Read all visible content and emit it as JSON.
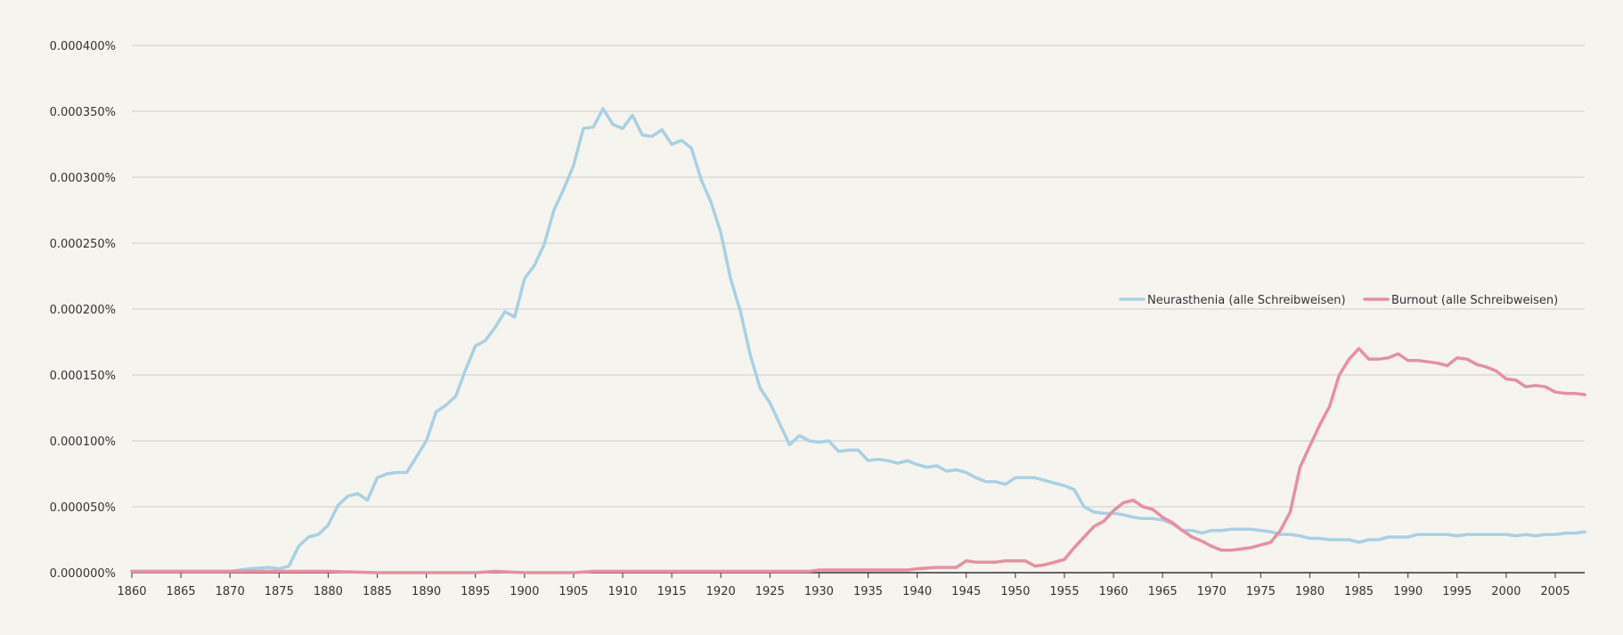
{
  "chart_data": {
    "type": "line",
    "title": "",
    "xlabel": "",
    "ylabel": "",
    "xlim": [
      1860,
      2008
    ],
    "ylim": [
      0,
      4e-06
    ],
    "grid": true,
    "legend_placement": "right",
    "x_ticks": [
      1860,
      1865,
      1870,
      1875,
      1880,
      1885,
      1890,
      1895,
      1900,
      1905,
      1910,
      1915,
      1920,
      1925,
      1930,
      1935,
      1940,
      1945,
      1950,
      1955,
      1960,
      1965,
      1970,
      1975,
      1980,
      1985,
      1990,
      1995,
      2000,
      2005
    ],
    "x_tick_labels": [
      "1860",
      "1865",
      "1870",
      "1875",
      "1880",
      "1885",
      "1890",
      "1895",
      "1900",
      "1905",
      "1910",
      "1915",
      "1920",
      "1925",
      "1930",
      "1935",
      "1940",
      "1945",
      "1950",
      "1955",
      "1960",
      "1965",
      "1970",
      "1975",
      "1980",
      "1985",
      "1990",
      "1995",
      "2000",
      "2005"
    ],
    "y_ticks": [
      0,
      5e-07,
      1e-06,
      1.5e-06,
      2e-06,
      2.5e-06,
      3e-06,
      3.5e-06,
      4e-06
    ],
    "y_tick_labels": [
      "0.000000%",
      "0.000050%",
      "0.000100%",
      "0.000150%",
      "0.000200%",
      "0.000250%",
      "0.000300%",
      "0.000350%",
      "0.000400%"
    ],
    "series": [
      {
        "name": "Neurasthenia (alle Schreibweisen)",
        "color": "#a8d1e3",
        "points": [
          [
            1860,
            1e-08
          ],
          [
            1865,
            1e-08
          ],
          [
            1870,
            1e-08
          ],
          [
            1872,
            3e-08
          ],
          [
            1874,
            4e-08
          ],
          [
            1875,
            3e-08
          ],
          [
            1876,
            5e-08
          ],
          [
            1877,
            2e-07
          ],
          [
            1878,
            2.7e-07
          ],
          [
            1879,
            2.9e-07
          ],
          [
            1880,
            3.6e-07
          ],
          [
            1881,
            5.1e-07
          ],
          [
            1882,
            5.8e-07
          ],
          [
            1883,
            6e-07
          ],
          [
            1884,
            5.5e-07
          ],
          [
            1885,
            7.2e-07
          ],
          [
            1886,
            7.5e-07
          ],
          [
            1887,
            7.6e-07
          ],
          [
            1888,
            7.6e-07
          ],
          [
            1889,
            8.8e-07
          ],
          [
            1890,
            1e-06
          ],
          [
            1891,
            1.22e-06
          ],
          [
            1892,
            1.27e-06
          ],
          [
            1893,
            1.34e-06
          ],
          [
            1894,
            1.54e-06
          ],
          [
            1895,
            1.72e-06
          ],
          [
            1896,
            1.76e-06
          ],
          [
            1897,
            1.86e-06
          ],
          [
            1898,
            1.98e-06
          ],
          [
            1899,
            1.94e-06
          ],
          [
            1900,
            2.23e-06
          ],
          [
            1901,
            2.33e-06
          ],
          [
            1902,
            2.49e-06
          ],
          [
            1903,
            2.75e-06
          ],
          [
            1904,
            2.91e-06
          ],
          [
            1905,
            3.09e-06
          ],
          [
            1906,
            3.37e-06
          ],
          [
            1907,
            3.38e-06
          ],
          [
            1908,
            3.52e-06
          ],
          [
            1909,
            3.4e-06
          ],
          [
            1910,
            3.37e-06
          ],
          [
            1911,
            3.47e-06
          ],
          [
            1912,
            3.32e-06
          ],
          [
            1913,
            3.31e-06
          ],
          [
            1914,
            3.36e-06
          ],
          [
            1915,
            3.25e-06
          ],
          [
            1916,
            3.28e-06
          ],
          [
            1917,
            3.22e-06
          ],
          [
            1918,
            2.98e-06
          ],
          [
            1919,
            2.81e-06
          ],
          [
            1920,
            2.58e-06
          ],
          [
            1921,
            2.23e-06
          ],
          [
            1922,
            1.98e-06
          ],
          [
            1923,
            1.65e-06
          ],
          [
            1924,
            1.4e-06
          ],
          [
            1925,
            1.29e-06
          ],
          [
            1926,
            1.13e-06
          ],
          [
            1927,
            9.7e-07
          ],
          [
            1928,
            1.04e-06
          ],
          [
            1929,
            1e-06
          ],
          [
            1930,
            9.9e-07
          ],
          [
            1931,
            1e-06
          ],
          [
            1932,
            9.2e-07
          ],
          [
            1933,
            9.3e-07
          ],
          [
            1934,
            9.3e-07
          ],
          [
            1935,
            8.5e-07
          ],
          [
            1936,
            8.6e-07
          ],
          [
            1937,
            8.5e-07
          ],
          [
            1938,
            8.3e-07
          ],
          [
            1939,
            8.5e-07
          ],
          [
            1940,
            8.2e-07
          ],
          [
            1941,
            8e-07
          ],
          [
            1942,
            8.1e-07
          ],
          [
            1943,
            7.7e-07
          ],
          [
            1944,
            7.8e-07
          ],
          [
            1945,
            7.6e-07
          ],
          [
            1946,
            7.2e-07
          ],
          [
            1947,
            6.9e-07
          ],
          [
            1948,
            6.9e-07
          ],
          [
            1949,
            6.7e-07
          ],
          [
            1950,
            7.2e-07
          ],
          [
            1951,
            7.2e-07
          ],
          [
            1952,
            7.2e-07
          ],
          [
            1953,
            7e-07
          ],
          [
            1954,
            6.8e-07
          ],
          [
            1955,
            6.6e-07
          ],
          [
            1956,
            6.3e-07
          ],
          [
            1957,
            5e-07
          ],
          [
            1958,
            4.6e-07
          ],
          [
            1959,
            4.5e-07
          ],
          [
            1960,
            4.5e-07
          ],
          [
            1961,
            4.4e-07
          ],
          [
            1962,
            4.2e-07
          ],
          [
            1963,
            4.1e-07
          ],
          [
            1964,
            4.1e-07
          ],
          [
            1965,
            4e-07
          ],
          [
            1966,
            3.7e-07
          ],
          [
            1967,
            3.2e-07
          ],
          [
            1968,
            3.2e-07
          ],
          [
            1969,
            3e-07
          ],
          [
            1970,
            3.2e-07
          ],
          [
            1971,
            3.2e-07
          ],
          [
            1972,
            3.3e-07
          ],
          [
            1973,
            3.3e-07
          ],
          [
            1974,
            3.3e-07
          ],
          [
            1975,
            3.2e-07
          ],
          [
            1976,
            3.1e-07
          ],
          [
            1977,
            2.9e-07
          ],
          [
            1978,
            2.9e-07
          ],
          [
            1979,
            2.8e-07
          ],
          [
            1980,
            2.6e-07
          ],
          [
            1981,
            2.6e-07
          ],
          [
            1982,
            2.5e-07
          ],
          [
            1983,
            2.5e-07
          ],
          [
            1984,
            2.5e-07
          ],
          [
            1985,
            2.3e-07
          ],
          [
            1986,
            2.5e-07
          ],
          [
            1987,
            2.5e-07
          ],
          [
            1988,
            2.7e-07
          ],
          [
            1989,
            2.7e-07
          ],
          [
            1990,
            2.7e-07
          ],
          [
            1991,
            2.9e-07
          ],
          [
            1992,
            2.9e-07
          ],
          [
            1993,
            2.9e-07
          ],
          [
            1994,
            2.9e-07
          ],
          [
            1995,
            2.8e-07
          ],
          [
            1996,
            2.9e-07
          ],
          [
            1997,
            2.9e-07
          ],
          [
            1998,
            2.9e-07
          ],
          [
            1999,
            2.9e-07
          ],
          [
            2000,
            2.9e-07
          ],
          [
            2001,
            2.8e-07
          ],
          [
            2002,
            2.9e-07
          ],
          [
            2003,
            2.8e-07
          ],
          [
            2004,
            2.9e-07
          ],
          [
            2005,
            2.9e-07
          ],
          [
            2006,
            3e-07
          ],
          [
            2007,
            3e-07
          ],
          [
            2008,
            3.1e-07
          ]
        ]
      },
      {
        "name": "Burnout (alle Schreibweisen)",
        "color": "#e78fa0",
        "points": [
          [
            1860,
            1e-08
          ],
          [
            1870,
            1e-08
          ],
          [
            1880,
            1e-08
          ],
          [
            1885,
            0.0
          ],
          [
            1890,
            0.0
          ],
          [
            1895,
            0.0
          ],
          [
            1897,
            1e-08
          ],
          [
            1900,
            0.0
          ],
          [
            1905,
            0.0
          ],
          [
            1907,
            1e-08
          ],
          [
            1910,
            1e-08
          ],
          [
            1920,
            1e-08
          ],
          [
            1925,
            1e-08
          ],
          [
            1929,
            1e-08
          ],
          [
            1930,
            2e-08
          ],
          [
            1935,
            2e-08
          ],
          [
            1939,
            2e-08
          ],
          [
            1940,
            3e-08
          ],
          [
            1942,
            4e-08
          ],
          [
            1944,
            4e-08
          ],
          [
            1945,
            9e-08
          ],
          [
            1946,
            8e-08
          ],
          [
            1948,
            8e-08
          ],
          [
            1949,
            9e-08
          ],
          [
            1950,
            9e-08
          ],
          [
            1951,
            9e-08
          ],
          [
            1952,
            5e-08
          ],
          [
            1953,
            6e-08
          ],
          [
            1954,
            8e-08
          ],
          [
            1955,
            1e-07
          ],
          [
            1956,
            1.9e-07
          ],
          [
            1957,
            2.7e-07
          ],
          [
            1958,
            3.5e-07
          ],
          [
            1959,
            3.9e-07
          ],
          [
            1960,
            4.7e-07
          ],
          [
            1961,
            5.3e-07
          ],
          [
            1962,
            5.5e-07
          ],
          [
            1963,
            5e-07
          ],
          [
            1964,
            4.8e-07
          ],
          [
            1965,
            4.2e-07
          ],
          [
            1966,
            3.8e-07
          ],
          [
            1967,
            3.2e-07
          ],
          [
            1968,
            2.7e-07
          ],
          [
            1969,
            2.4e-07
          ],
          [
            1970,
            2e-07
          ],
          [
            1971,
            1.7e-07
          ],
          [
            1972,
            1.7e-07
          ],
          [
            1973,
            1.8e-07
          ],
          [
            1974,
            1.9e-07
          ],
          [
            1975,
            2.1e-07
          ],
          [
            1976,
            2.3e-07
          ],
          [
            1977,
            3.2e-07
          ],
          [
            1978,
            4.6e-07
          ],
          [
            1979,
            8e-07
          ],
          [
            1980,
            9.6e-07
          ],
          [
            1981,
            1.12e-06
          ],
          [
            1982,
            1.26e-06
          ],
          [
            1983,
            1.5e-06
          ],
          [
            1984,
            1.62e-06
          ],
          [
            1985,
            1.7e-06
          ],
          [
            1986,
            1.62e-06
          ],
          [
            1987,
            1.62e-06
          ],
          [
            1988,
            1.63e-06
          ],
          [
            1989,
            1.66e-06
          ],
          [
            1990,
            1.61e-06
          ],
          [
            1991,
            1.61e-06
          ],
          [
            1992,
            1.6e-06
          ],
          [
            1993,
            1.59e-06
          ],
          [
            1994,
            1.57e-06
          ],
          [
            1995,
            1.63e-06
          ],
          [
            1996,
            1.62e-06
          ],
          [
            1997,
            1.58e-06
          ],
          [
            1998,
            1.56e-06
          ],
          [
            1999,
            1.53e-06
          ],
          [
            2000,
            1.47e-06
          ],
          [
            2001,
            1.46e-06
          ],
          [
            2002,
            1.41e-06
          ],
          [
            2003,
            1.42e-06
          ],
          [
            2004,
            1.41e-06
          ],
          [
            2005,
            1.37e-06
          ],
          [
            2006,
            1.36e-06
          ],
          [
            2007,
            1.36e-06
          ],
          [
            2008,
            1.35e-06
          ]
        ]
      }
    ]
  }
}
